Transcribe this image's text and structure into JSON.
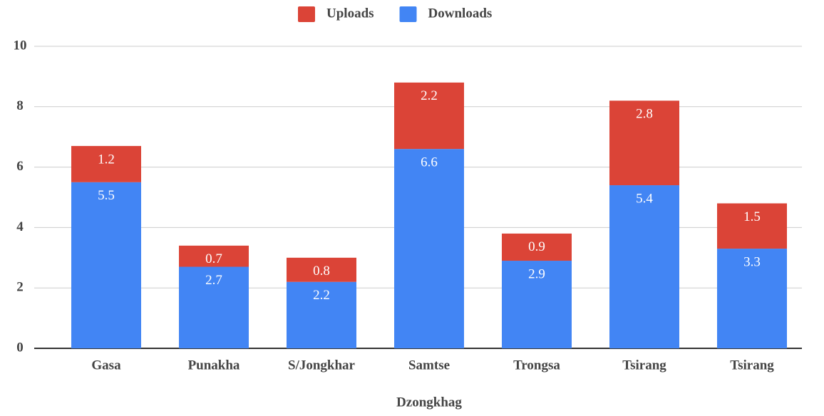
{
  "chart_data": {
    "type": "stacked_bar",
    "x_label": "Dzongkhag",
    "categories": [
      "Gasa",
      "Punakha",
      "S/Jongkhar",
      "Samtse",
      "Trongsa",
      "Tsirang",
      "Tsirang"
    ],
    "series": [
      {
        "name": "Downloads",
        "color": "#4285f4",
        "values": [
          5.5,
          2.7,
          2.2,
          6.6,
          2.9,
          5.4,
          3.3
        ]
      },
      {
        "name": "Uploads",
        "color": "#db4437",
        "values": [
          1.2,
          0.7,
          0.8,
          2.2,
          0.9,
          2.8,
          1.5
        ]
      }
    ],
    "ylim": [
      0,
      10
    ],
    "yticks": [
      0,
      2,
      4,
      6,
      8,
      10
    ],
    "grid": true,
    "legend": "top"
  }
}
